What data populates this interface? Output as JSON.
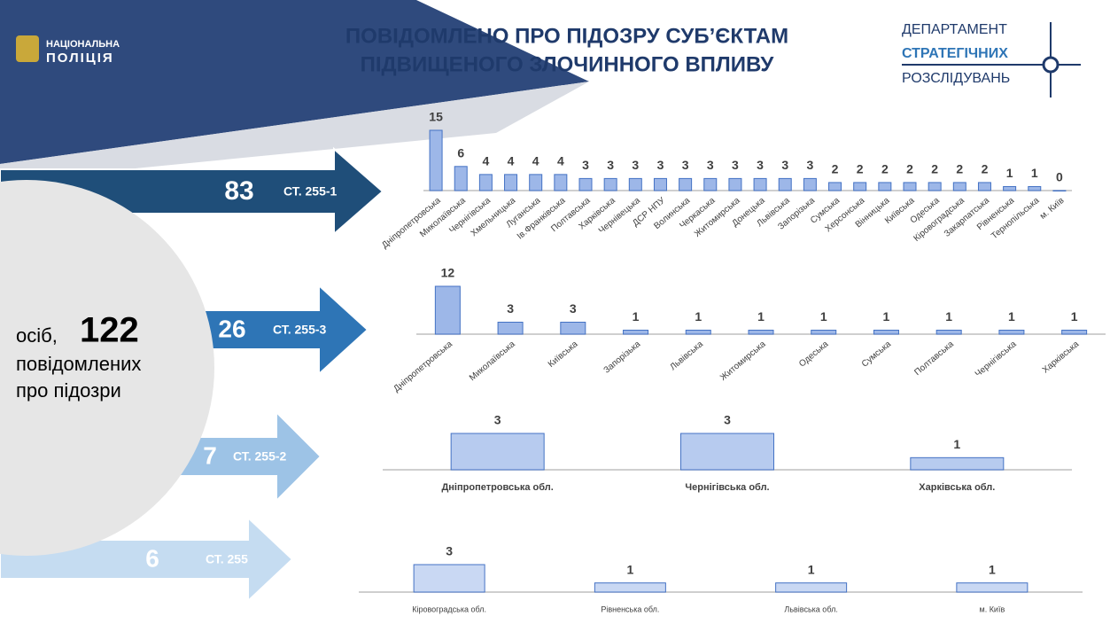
{
  "header": {
    "logo": [
      "НАЦІОНАЛЬНА",
      "ПОЛІЦІЯ"
    ],
    "title": [
      "ПОВІДОМЛЕНО ПРО ПІДОЗРУ СУБ’ЄКТАМ",
      "ПІДВИЩЕНОГО ЗЛОЧИННОГО ВПЛИВУ"
    ],
    "department": [
      "ДЕПАРТАМЕНТ",
      "СТРАТЕГІЧНИХ",
      "РОЗСЛІДУВАНЬ"
    ]
  },
  "summary": {
    "prefix": "осіб,",
    "total": 122,
    "lines": [
      "повідомлених",
      "про підозри"
    ]
  },
  "arrows": [
    {
      "value": 83,
      "label": "СТ. 255-1",
      "color": "#1f4e79"
    },
    {
      "value": 26,
      "label": "СТ. 255-3",
      "color": "#2e75b6"
    },
    {
      "value": 7,
      "label": "СТ. 255-2",
      "color": "#9dc3e6"
    },
    {
      "value": 6,
      "label": "СТ. 255",
      "color": "#c5dcf1"
    }
  ],
  "chart_data": [
    {
      "type": "bar",
      "color": "#9db7e8",
      "categories": [
        "Дніпропетровська",
        "Миколаївська",
        "Чернігівська",
        "Хмельницька",
        "Луганська",
        "Ів.Франківська",
        "Полтавська",
        "Харківська",
        "Чернівецька",
        "ДСР НПУ",
        "Волинська",
        "Черкаська",
        "Житомирська",
        "Донецька",
        "Львівська",
        "Запорізька",
        "Сумська",
        "Херсонська",
        "Вінницька",
        "Київська",
        "Одеська",
        "Кіровоградська",
        "Закарпатська",
        "Рівненська",
        "Тернопільська",
        "м. Київ"
      ],
      "values": [
        15,
        6,
        4,
        4,
        4,
        4,
        3,
        3,
        3,
        3,
        3,
        3,
        3,
        3,
        3,
        3,
        2,
        2,
        2,
        2,
        2,
        2,
        2,
        1,
        1,
        0
      ]
    },
    {
      "type": "bar",
      "color": "#9db7e8",
      "categories": [
        "Дніпропетровська",
        "Миколаївська",
        "Київська",
        "Запорізька",
        "Львівська",
        "Житомирська",
        "Одеська",
        "Сумська",
        "Полтавська",
        "Чернігівська",
        "Харківська"
      ],
      "values": [
        12,
        3,
        3,
        1,
        1,
        1,
        1,
        1,
        1,
        1,
        1
      ]
    },
    {
      "type": "bar",
      "color": "#b7cbef",
      "categories": [
        "Дніпропетровська обл.",
        "Чернігівська обл.",
        "Харківська обл."
      ],
      "values": [
        3,
        3,
        1
      ]
    },
    {
      "type": "bar",
      "color": "#c9d8f3",
      "categories": [
        "Кіровоградська обл.",
        "Рівненська обл.",
        "Львівська обл.",
        "м. Київ"
      ],
      "values": [
        3,
        1,
        1,
        1
      ]
    }
  ]
}
